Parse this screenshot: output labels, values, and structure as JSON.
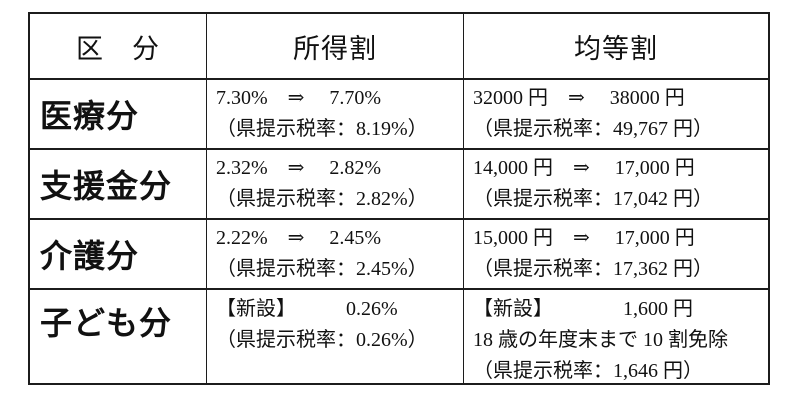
{
  "table": {
    "headers": {
      "category": "区　分",
      "income_rate": "所得割",
      "per_capita": "均等割"
    },
    "rows": [
      {
        "label": "医療分",
        "income": [
          "7.30%　⇒　 7.70%",
          "（県提示税率：8.19%）"
        ],
        "per_capita": [
          "32000 円　⇒　 38000 円",
          "（県提示税率：49,767 円）"
        ]
      },
      {
        "label": "支援金分",
        "income": [
          "2.32%　⇒　 2.82%",
          "（県提示税率：2.82%）"
        ],
        "per_capita": [
          "14,000 円　⇒　 17,000 円",
          "（県提示税率：17,042 円）"
        ]
      },
      {
        "label": "介護分",
        "income": [
          "2.22%　⇒　 2.45%",
          "（県提示税率：2.45%）"
        ],
        "per_capita": [
          "15,000 円　⇒　 17,000 円",
          "（県提示税率：17,362 円）"
        ]
      },
      {
        "label": "子ども分",
        "income": [
          "【新設】　　　0.26%",
          "（県提示税率：0.26%）"
        ],
        "per_capita": [
          "【新設】　　　　1,600 円",
          "18 歳の年度末まで 10 割免除",
          "（県提示税率：1,646 円）"
        ]
      }
    ],
    "colors": {
      "border": "#1c1c1c",
      "text": "#111111",
      "background": "#ffffff"
    }
  }
}
